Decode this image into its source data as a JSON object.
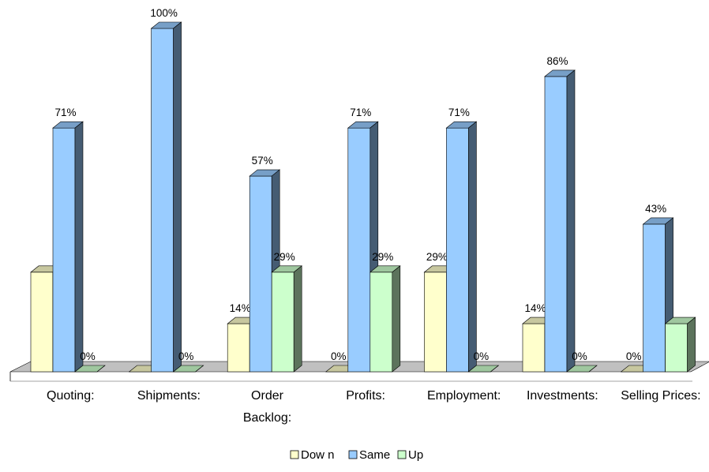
{
  "chart_data": {
    "type": "bar",
    "categories": [
      [
        "Quoting:"
      ],
      [
        "Shipments:"
      ],
      [
        "Order",
        "Backlog:"
      ],
      [
        "Profits:"
      ],
      [
        "Employment:"
      ],
      [
        "Investments:"
      ],
      [
        "Selling Prices:"
      ]
    ],
    "series": [
      {
        "name": "Down",
        "values": [
          29,
          0,
          14,
          0,
          29,
          14,
          0
        ],
        "labels": [
          "",
          "",
          "14%",
          "0%",
          "29%",
          "14%",
          "0%"
        ],
        "color": "#ffffcc"
      },
      {
        "name": "Same",
        "values": [
          71,
          100,
          57,
          71,
          71,
          86,
          43
        ],
        "labels": [
          "71%",
          "100%",
          "57%",
          "71%",
          "71%",
          "86%",
          "43%"
        ],
        "color": "#99ccff"
      },
      {
        "name": "Up",
        "values": [
          0,
          0,
          29,
          29,
          0,
          0,
          14
        ],
        "labels": [
          "0%",
          "0%",
          "29%",
          "29%",
          "0%",
          "0%",
          ""
        ],
        "color": "#ccffcc"
      }
    ],
    "ylim": [
      0,
      100
    ],
    "legend_position": "bottom",
    "three_d": true
  },
  "legend": {
    "items": [
      {
        "label": "Dow n",
        "color": "#ffffcc"
      },
      {
        "label": "Same",
        "color": "#99ccff"
      },
      {
        "label": "Up",
        "color": "#ccffcc"
      }
    ]
  }
}
